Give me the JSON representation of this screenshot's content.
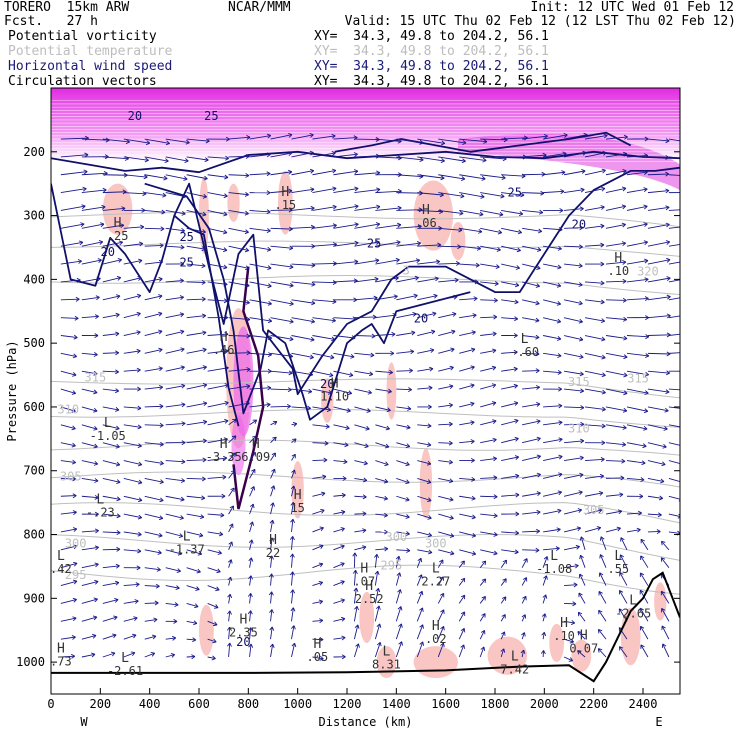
{
  "header": {
    "model": "TORERO  15km ARW",
    "forecast": "Fcst.   27 h",
    "center": "NCAR/MMM",
    "init": "Init: 12 UTC Wed 01 Feb 12",
    "valid": "Valid: 15 UTC Thu 02 Feb 12 (12 LST Thu 02 Feb 12)",
    "fields": [
      {
        "name": "Potential vorticity",
        "xy": "XY=  34.3, 49.8 to 204.2, 56.1",
        "color": "#000000"
      },
      {
        "name": "Potential temperature",
        "xy": "XY=  34.3, 49.8 to 204.2, 56.1",
        "color": "#bdbdbd"
      },
      {
        "name": "Horizontal wind speed",
        "xy": "XY=  34.3, 49.8 to 204.2, 56.1",
        "color": "#1a1a7a"
      },
      {
        "name": "Circulation vectors",
        "xy": "XY=  34.3, 49.8 to 204.2, 56.1",
        "color": "#000000"
      }
    ]
  },
  "chart_data": {
    "type": "vertical cross-section",
    "xlabel": "Distance (km)",
    "ylabel": "Pressure (hPa)",
    "xlim": [
      0,
      2550
    ],
    "ylim": [
      1050,
      100
    ],
    "x_ticks": [
      0,
      200,
      400,
      600,
      800,
      1000,
      1200,
      1400,
      1600,
      1800,
      2000,
      2200,
      2400
    ],
    "y_ticks": [
      200,
      300,
      400,
      500,
      600,
      700,
      800,
      900,
      1000
    ],
    "x_ends": [
      "W",
      "E"
    ],
    "colors": {
      "pv_shade": "#f7b3b0",
      "pv_high": "#ee66ee",
      "strat": "#e040e0",
      "wind_contour": "#10106a",
      "theta": "#bfbfbf",
      "vectors": "#1a1a8c",
      "terrain": "#000000"
    },
    "theta_labels": [
      {
        "text": "315",
        "x": 180,
        "p": 560
      },
      {
        "text": "315",
        "x": 2140,
        "p": 567
      },
      {
        "text": "315",
        "x": 2380,
        "p": 562
      },
      {
        "text": "310",
        "x": 70,
        "p": 610
      },
      {
        "text": "310",
        "x": 2140,
        "p": 640
      },
      {
        "text": "305",
        "x": 80,
        "p": 715
      },
      {
        "text": "305",
        "x": 2200,
        "p": 768
      },
      {
        "text": "300",
        "x": 100,
        "p": 820
      },
      {
        "text": "300",
        "x": 1400,
        "p": 810
      },
      {
        "text": "300",
        "x": 1560,
        "p": 820
      },
      {
        "text": "295",
        "x": 100,
        "p": 870
      },
      {
        "text": "295",
        "x": 1380,
        "p": 855
      },
      {
        "text": "320",
        "x": 2420,
        "p": 394
      },
      {
        "text": "3",
        "x": 1440,
        "p": 392
      }
    ],
    "wind_labels": [
      {
        "text": "20",
        "x": 340,
        "p": 150
      },
      {
        "text": "25",
        "x": 650,
        "p": 150
      },
      {
        "text": "20",
        "x": 230,
        "p": 363
      },
      {
        "text": "25",
        "x": 550,
        "p": 340
      },
      {
        "text": "25",
        "x": 550,
        "p": 380
      },
      {
        "text": "25",
        "x": 1310,
        "p": 350
      },
      {
        "text": "20",
        "x": 1500,
        "p": 468
      },
      {
        "text": "20",
        "x": 1120,
        "p": 570
      },
      {
        "text": "25",
        "x": 1880,
        "p": 270
      },
      {
        "text": "20",
        "x": 2140,
        "p": 320
      },
      {
        "text": "20",
        "x": 780,
        "p": 975
      }
    ],
    "pv_extrema": [
      {
        "type": "H",
        "x": 270,
        "p": 338,
        "val": ".25"
      },
      {
        "type": "H",
        "x": 950,
        "p": 290,
        "val": ".15"
      },
      {
        "type": "H",
        "x": 1520,
        "p": 318,
        "val": ".06"
      },
      {
        "type": "H",
        "x": 2300,
        "p": 393,
        "val": ".10"
      },
      {
        "type": "H",
        "x": 700,
        "p": 517,
        "val": ".46"
      },
      {
        "type": "L",
        "x": 1920,
        "p": 520,
        "val": "-.60"
      },
      {
        "type": "H",
        "x": 1150,
        "p": 590,
        "val": "1.10"
      },
      {
        "type": "L",
        "x": 230,
        "p": 652,
        "val": "-1.05"
      },
      {
        "type": "H",
        "x": 700,
        "p": 685,
        "val": "-3.35"
      },
      {
        "type": "H",
        "x": 830,
        "p": 685,
        "val": "6.09"
      },
      {
        "type": "L",
        "x": 200,
        "p": 772,
        "val": "-.23"
      },
      {
        "type": "H",
        "x": 1000,
        "p": 765,
        "val": "15"
      },
      {
        "type": "L",
        "x": 550,
        "p": 830,
        "val": "-1.37"
      },
      {
        "type": "H",
        "x": 900,
        "p": 835,
        "val": "22"
      },
      {
        "type": "H",
        "x": 1270,
        "p": 880,
        "val": ".07"
      },
      {
        "type": "H",
        "x": 1290,
        "p": 907,
        "val": "2.52"
      },
      {
        "type": "L",
        "x": 1560,
        "p": 880,
        "val": "2.27"
      },
      {
        "type": "L",
        "x": 2040,
        "p": 860,
        "val": "-1.08"
      },
      {
        "type": "L",
        "x": 2300,
        "p": 860,
        "val": ".55"
      },
      {
        "type": "L",
        "x": 2360,
        "p": 930,
        "val": "-2.65"
      },
      {
        "type": "H",
        "x": 780,
        "p": 960,
        "val": "2.35"
      },
      {
        "type": "H",
        "x": 1080,
        "p": 998,
        "val": ".05"
      },
      {
        "type": "H",
        "x": 1560,
        "p": 970,
        "val": ".02"
      },
      {
        "type": "H",
        "x": 2080,
        "p": 965,
        "val": ".10"
      },
      {
        "type": "H",
        "x": 2160,
        "p": 985,
        "val": "0.07"
      },
      {
        "type": "L",
        "x": 300,
        "p": 1020,
        "val": "-2.61"
      },
      {
        "type": "L",
        "x": 40,
        "p": 860,
        "val": ".42"
      },
      {
        "type": "H",
        "x": 40,
        "p": 1005,
        "val": ".73"
      },
      {
        "type": "L",
        "x": 1880,
        "p": 1018,
        "val": "7.42"
      },
      {
        "type": "L",
        "x": 1360,
        "p": 1010,
        "val": "8.31"
      }
    ],
    "terrain": [
      [
        0,
        1017
      ],
      [
        400,
        1017
      ],
      [
        800,
        1017
      ],
      [
        1200,
        1016
      ],
      [
        1600,
        1013
      ],
      [
        1900,
        1007
      ],
      [
        2100,
        1005
      ],
      [
        2200,
        1030
      ],
      [
        2250,
        1000
      ],
      [
        2300,
        960
      ],
      [
        2350,
        920
      ],
      [
        2400,
        900
      ],
      [
        2440,
        870
      ],
      [
        2480,
        860
      ],
      [
        2520,
        900
      ],
      [
        2550,
        930
      ]
    ]
  }
}
